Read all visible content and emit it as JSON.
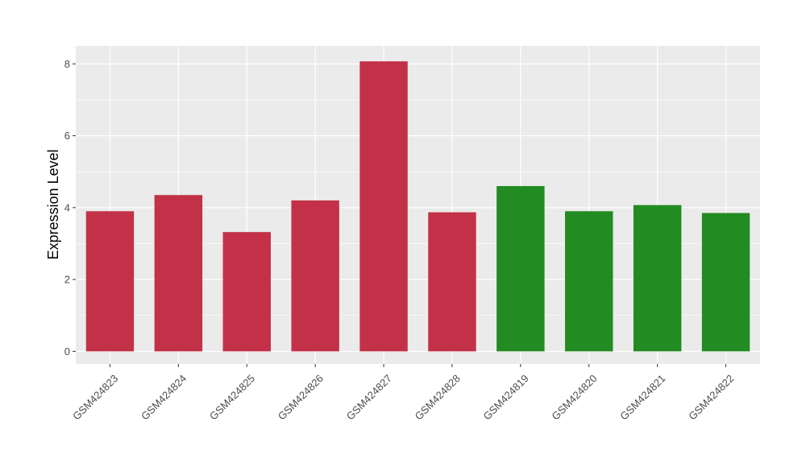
{
  "chart_data": {
    "type": "bar",
    "title": "",
    "xlabel": "",
    "ylabel": "Expression Level",
    "ylim": [
      -0.35,
      8.5
    ],
    "yticks": [
      0,
      2,
      4,
      6,
      8
    ],
    "grid": true,
    "legend": "none",
    "categories": [
      "GSM424823",
      "GSM424824",
      "GSM424825",
      "GSM424826",
      "GSM424827",
      "GSM424828",
      "GSM424819",
      "GSM424820",
      "GSM424821",
      "GSM424822"
    ],
    "values": [
      3.9,
      4.35,
      3.32,
      4.2,
      8.07,
      3.87,
      4.6,
      3.9,
      4.07,
      3.85
    ],
    "groups": [
      "group1",
      "group1",
      "group1",
      "group1",
      "group1",
      "group1",
      "group2",
      "group2",
      "group2",
      "group2"
    ],
    "colors": {
      "group1": "#C23148",
      "group2": "#228B22",
      "panel": "#EBEBEB",
      "grid": "#FFFFFF"
    }
  }
}
